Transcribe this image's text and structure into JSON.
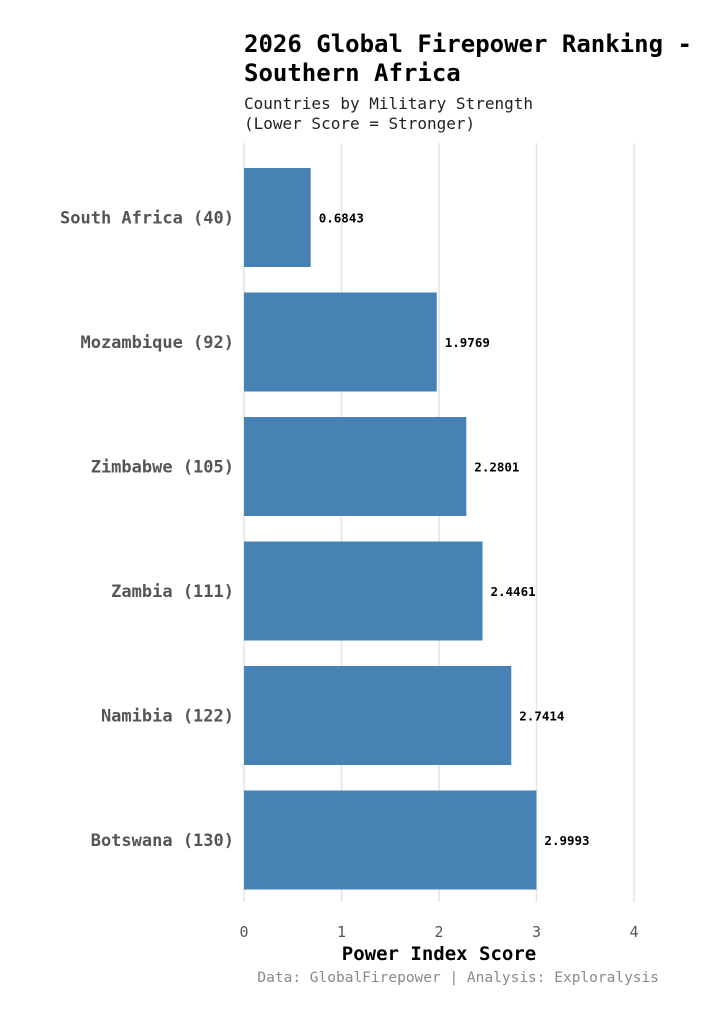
{
  "chart_data": {
    "type": "bar",
    "orientation": "horizontal",
    "title": "2026 Global Firepower Ranking - Southern Africa",
    "subtitle_lines": [
      "Countries by Military Strength",
      "(Lower Score = Stronger)"
    ],
    "categories": [
      "South Africa (40)",
      "Mozambique (92)",
      "Zimbabwe (105)",
      "Zambia (111)",
      "Namibia (122)",
      "Botswana (130)"
    ],
    "values": [
      0.6843,
      1.9769,
      2.2801,
      2.4461,
      2.7414,
      2.9993
    ],
    "value_labels": [
      "0.6843",
      "1.9769",
      "2.2801",
      "2.4461",
      "2.7414",
      "2.9993"
    ],
    "xlabel": "Power Index Score",
    "ylabel": "",
    "xlim": [
      0,
      4
    ],
    "x_ticks": [
      0,
      1,
      2,
      3,
      4
    ],
    "x_tick_labels": [
      "0",
      "1",
      "2",
      "3",
      "4"
    ],
    "grid": "vertical",
    "legend": "none",
    "colors": {
      "bar": "#4682b4",
      "grid": "#e4e4e4"
    },
    "caption": "Data: GlobalFirepower | Analysis: Exploralysis"
  }
}
